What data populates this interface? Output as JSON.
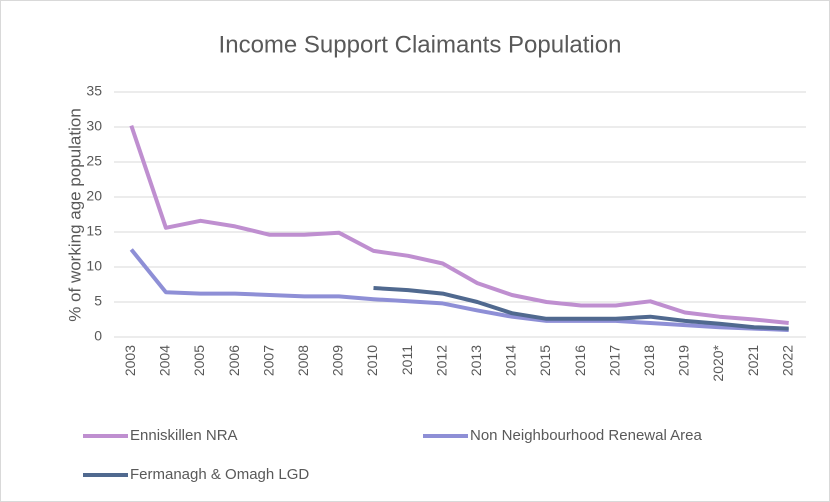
{
  "chart_data": {
    "type": "line",
    "title": "Income Support Claimants Population",
    "y_label": "% of working age population",
    "categories": [
      "2003",
      "2004",
      "2005",
      "2006",
      "2007",
      "2008",
      "2009",
      "2010",
      "2011",
      "2012",
      "2013",
      "2014",
      "2015",
      "2016",
      "2017",
      "2018",
      "2019",
      "2020*",
      "2021",
      "2022"
    ],
    "series": [
      {
        "name": "Enniskillen NRA",
        "color": "#bf8fd0",
        "values": [
          30.2,
          15.6,
          16.6,
          15.8,
          14.6,
          14.6,
          14.9,
          12.3,
          11.6,
          10.5,
          7.7,
          6.0,
          5.0,
          4.5,
          4.5,
          5.1,
          3.5,
          2.9,
          2.5,
          2.0
        ]
      },
      {
        "name": "Non Neighbourhood Renewal Area",
        "color": "#8e8fd6",
        "values": [
          12.5,
          6.4,
          6.2,
          6.2,
          6.0,
          5.8,
          5.8,
          5.4,
          5.1,
          4.8,
          3.8,
          2.9,
          2.3,
          2.3,
          2.3,
          2.0,
          1.7,
          1.4,
          1.2,
          1.0
        ]
      },
      {
        "name": "Fermanagh & Omagh LGD",
        "color": "#50698f",
        "values": [
          null,
          null,
          null,
          null,
          null,
          null,
          null,
          7.0,
          6.7,
          6.2,
          5.0,
          3.4,
          2.6,
          2.6,
          2.6,
          2.9,
          2.3,
          1.9,
          1.4,
          1.2
        ]
      }
    ],
    "ylim": [
      0,
      35
    ],
    "yticks": [
      0,
      5,
      10,
      15,
      20,
      25,
      30,
      35
    ],
    "grid": true,
    "legend": "bottom"
  }
}
